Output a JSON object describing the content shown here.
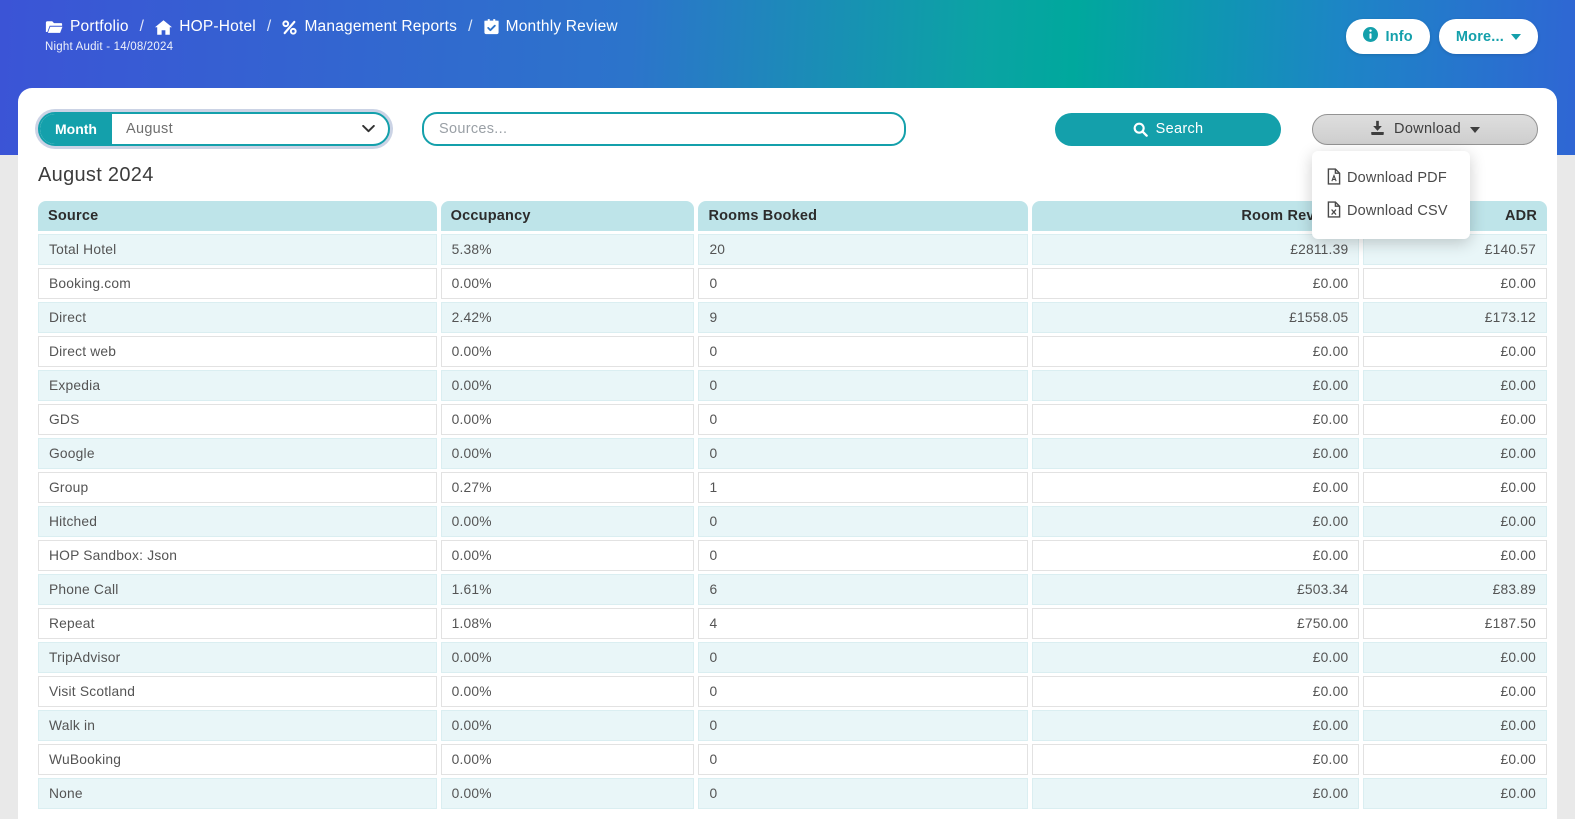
{
  "header": {
    "breadcrumb": [
      {
        "icon": "folder-open-icon",
        "label": "Portfolio"
      },
      {
        "icon": "home-icon",
        "label": "HOP-Hotel"
      },
      {
        "icon": "percent-icon",
        "label": "Management Reports"
      },
      {
        "icon": "calendar-check-icon",
        "label": "Monthly Review"
      }
    ],
    "separator": "/",
    "subtitle": "Night Audit - 14/08/2024",
    "info_button": "Info",
    "more_button": "More..."
  },
  "toolbar": {
    "month_label": "Month",
    "month_value": "August",
    "sources_placeholder": "Sources...",
    "search_label": "Search",
    "download_label": "Download",
    "download_menu": [
      {
        "icon": "file-pdf-icon",
        "label": "Download PDF"
      },
      {
        "icon": "file-csv-icon",
        "label": "Download CSV"
      }
    ]
  },
  "report": {
    "title": "August 2024",
    "table": {
      "columns": [
        "Source",
        "Occupancy",
        "Rooms Booked",
        "Room Revenue",
        "ADR"
      ],
      "rows": [
        [
          "Total Hotel",
          "5.38%",
          "20",
          "£2811.39",
          "£140.57"
        ],
        [
          "Booking.com",
          "0.00%",
          "0",
          "£0.00",
          "£0.00"
        ],
        [
          "Direct",
          "2.42%",
          "9",
          "£1558.05",
          "£173.12"
        ],
        [
          "Direct web",
          "0.00%",
          "0",
          "£0.00",
          "£0.00"
        ],
        [
          "Expedia",
          "0.00%",
          "0",
          "£0.00",
          "£0.00"
        ],
        [
          "GDS",
          "0.00%",
          "0",
          "£0.00",
          "£0.00"
        ],
        [
          "Google",
          "0.00%",
          "0",
          "£0.00",
          "£0.00"
        ],
        [
          "Group",
          "0.27%",
          "1",
          "£0.00",
          "£0.00"
        ],
        [
          "Hitched",
          "0.00%",
          "0",
          "£0.00",
          "£0.00"
        ],
        [
          "HOP Sandbox: Json",
          "0.00%",
          "0",
          "£0.00",
          "£0.00"
        ],
        [
          "Phone Call",
          "1.61%",
          "6",
          "£503.34",
          "£83.89"
        ],
        [
          "Repeat",
          "1.08%",
          "4",
          "£750.00",
          "£187.50"
        ],
        [
          "TripAdvisor",
          "0.00%",
          "0",
          "£0.00",
          "£0.00"
        ],
        [
          "Visit Scotland",
          "0.00%",
          "0",
          "£0.00",
          "£0.00"
        ],
        [
          "Walk in",
          "0.00%",
          "0",
          "£0.00",
          "£0.00"
        ],
        [
          "WuBooking",
          "0.00%",
          "0",
          "£0.00",
          "£0.00"
        ],
        [
          "None",
          "0.00%",
          "0",
          "£0.00",
          "£0.00"
        ]
      ]
    }
  },
  "colors": {
    "accent_teal": "#14a0ab",
    "gradient_blue_left": "#3b54d6",
    "gradient_teal_mid": "#00a89d",
    "gradient_blue_right": "#2f66d4",
    "table_header_bg": "#bee4e9",
    "row_alt_bg": "#e9f6f8"
  }
}
